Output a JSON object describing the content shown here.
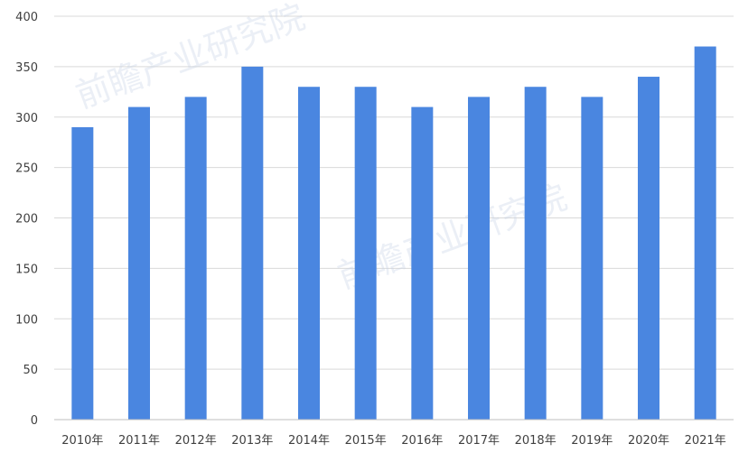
{
  "chart_data": {
    "type": "bar",
    "categories": [
      "2010年",
      "2011年",
      "2012年",
      "2013年",
      "2014年",
      "2015年",
      "2016年",
      "2017年",
      "2018年",
      "2019年",
      "2020年",
      "2021年"
    ],
    "values": [
      290,
      310,
      320,
      350,
      330,
      330,
      310,
      320,
      330,
      320,
      340,
      370
    ],
    "ylim": [
      0,
      400
    ],
    "yticks": [
      0,
      50,
      100,
      150,
      200,
      250,
      300,
      350,
      400
    ],
    "grid": true,
    "bar_color": "#4a86e0",
    "title": "",
    "xlabel": "",
    "ylabel": ""
  },
  "watermark": {
    "text": "前瞻产业研究院"
  }
}
